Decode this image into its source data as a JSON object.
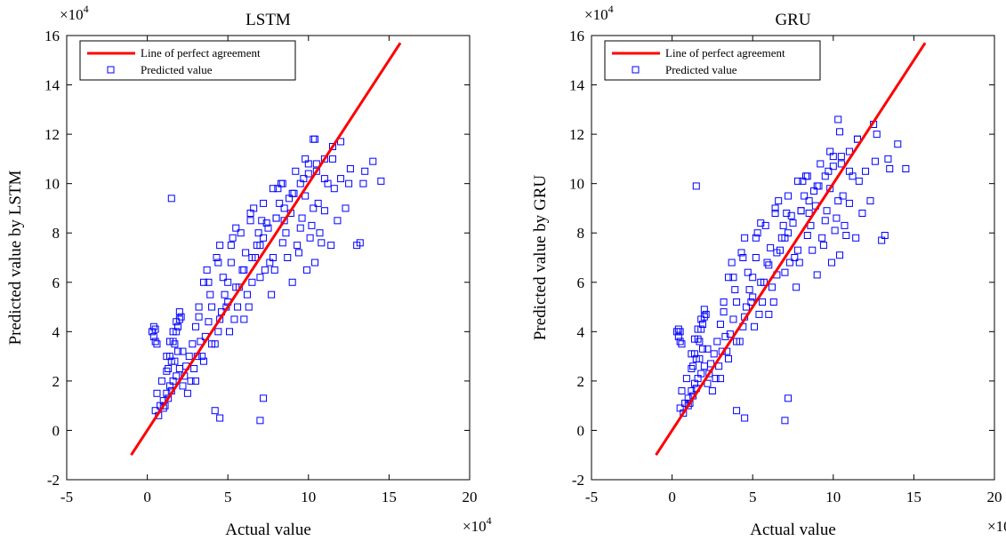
{
  "figure": {
    "colors": {
      "reference_line": "#ff0000",
      "markers": "#0000ff",
      "axes": "#000000",
      "background": "#ffffff"
    },
    "multiplier_label": "×10",
    "multiplier_exponent": "4"
  },
  "chart_data": [
    {
      "type": "scatter",
      "title": "LSTM",
      "xlabel": "Actual value",
      "ylabel": "Predicted value by LSTM",
      "xlim": [
        -5,
        20
      ],
      "ylim": [
        -2,
        16
      ],
      "xticks": [
        "-5",
        "0",
        "5",
        "10",
        "15",
        "20"
      ],
      "yticks": [
        "-2",
        "0",
        "2",
        "4",
        "6",
        "8",
        "10",
        "12",
        "14",
        "16"
      ],
      "scale_factor": "×10^4",
      "grid": false,
      "legend_position": "top-left",
      "legend": [
        "Line of perfect agreement",
        "Predicted value"
      ],
      "reference_line": {
        "name": "Line of perfect agreement",
        "x": [
          -1,
          15.7
        ],
        "y": [
          -1,
          15.7
        ]
      },
      "series": [
        {
          "name": "Predicted value",
          "marker": "square",
          "x": [
            0.5,
            0.8,
            1.0,
            1.2,
            1.4,
            1.6,
            1.8,
            2.0,
            0.6,
            0.9,
            1.1,
            1.3,
            1.5,
            1.7,
            1.9,
            2.2,
            0.7,
            1.0,
            1.2,
            1.4,
            1.6,
            1.8,
            2.0,
            2.4,
            2.6,
            2.8,
            3.0,
            3.2,
            3.4,
            3.6,
            3.8,
            4.0,
            2.5,
            2.7,
            2.9,
            3.1,
            3.3,
            3.5,
            3.7,
            3.9,
            4.2,
            4.4,
            4.6,
            4.8,
            5.0,
            5.2,
            5.4,
            5.6,
            4.3,
            4.5,
            4.7,
            4.9,
            5.1,
            5.3,
            5.5,
            5.7,
            5.9,
            6.1,
            6.3,
            6.5,
            6.7,
            6.9,
            7.1,
            7.3,
            6.0,
            6.2,
            6.4,
            6.6,
            6.8,
            7.0,
            7.2,
            7.4,
            7.6,
            7.8,
            8.0,
            8.2,
            8.4,
            8.6,
            8.8,
            9.0,
            7.7,
            7.9,
            8.1,
            8.3,
            8.5,
            8.7,
            8.9,
            9.1,
            9.3,
            9.5,
            9.7,
            9.9,
            10.1,
            10.3,
            10.5,
            10.7,
            9.4,
            9.6,
            9.8,
            10.0,
            10.2,
            10.4,
            10.6,
            10.8,
            11.0,
            11.2,
            11.4,
            11.6,
            11.8,
            12.0,
            12.3,
            12.6,
            1.2,
            1.4,
            1.6,
            1.8,
            2.0,
            2.2,
            1.3,
            1.5,
            1.7,
            1.9,
            2.1,
            2.3,
            3.0,
            3.5,
            4.0,
            4.5,
            5.0,
            5.5,
            6.0,
            6.5,
            7.0,
            7.5,
            8.0,
            8.5,
            9.0,
            9.5,
            10.0,
            10.5,
            11.0,
            11.5,
            3.2,
            3.8,
            4.4,
            5.2,
            5.8,
            6.4,
            7.2,
            7.8,
            8.4,
            9.2,
            9.8,
            10.4,
            0.3,
            0.4,
            0.5,
            0.6,
            0.4,
            0.5,
            1.5,
            4.2,
            4.5,
            7.0,
            7.2,
            10.3,
            11.0,
            12.5,
            13.0,
            13.2,
            13.5,
            14.0,
            14.5,
            13.4,
            12.0,
            11.5
          ],
          "y": [
            0.8,
            1.0,
            1.2,
            1.5,
            1.8,
            2.0,
            2.2,
            2.5,
            1.5,
            2.0,
            1.0,
            1.3,
            1.6,
            2.8,
            3.2,
            1.8,
            0.6,
            0.9,
            2.4,
            3.0,
            3.6,
            4.0,
            4.5,
            2.6,
            3.0,
            3.5,
            4.2,
            4.6,
            3.0,
            3.8,
            4.4,
            5.0,
            1.5,
            2.0,
            2.5,
            3.0,
            3.6,
            6.0,
            6.5,
            5.5,
            3.5,
            4.0,
            4.8,
            5.5,
            6.0,
            6.8,
            4.5,
            5.0,
            7.0,
            7.5,
            6.2,
            5.0,
            4.0,
            7.8,
            8.2,
            5.8,
            6.5,
            7.2,
            5.0,
            6.0,
            7.0,
            8.0,
            8.5,
            6.5,
            4.5,
            5.5,
            8.8,
            9.0,
            7.5,
            6.2,
            7.8,
            8.4,
            6.8,
            7.0,
            8.6,
            9.2,
            7.6,
            8.0,
            9.4,
            6.0,
            5.5,
            6.5,
            9.8,
            10.0,
            8.5,
            7.0,
            8.8,
            9.6,
            7.5,
            8.2,
            10.2,
            6.5,
            7.8,
            9.0,
            10.5,
            8.0,
            7.2,
            8.6,
            9.5,
            10.8,
            8.3,
            6.8,
            9.2,
            7.6,
            8.9,
            10.0,
            7.5,
            9.8,
            8.5,
            10.2,
            9.0,
            10.6,
            3.0,
            3.6,
            4.0,
            4.4,
            4.8,
            3.2,
            2.5,
            2.8,
            3.5,
            4.2,
            4.6,
            2.2,
            2.0,
            2.8,
            3.5,
            4.5,
            5.2,
            5.8,
            6.5,
            7.0,
            7.5,
            8.2,
            8.6,
            9.0,
            9.6,
            10.0,
            10.4,
            10.8,
            11.0,
            11.5,
            5.0,
            6.0,
            6.8,
            7.5,
            8.0,
            8.5,
            9.2,
            9.8,
            10.0,
            10.5,
            11.0,
            11.8,
            4.0,
            4.2,
            3.6,
            3.5,
            3.8,
            4.1,
            9.4,
            0.8,
            0.5,
            0.4,
            1.3,
            11.8,
            10.2,
            10.0,
            7.5,
            7.6,
            10.5,
            10.9,
            10.1,
            10.0,
            11.7,
            11.0
          ]
        }
      ]
    },
    {
      "type": "scatter",
      "title": "GRU",
      "xlabel": "Actual value",
      "ylabel": "Predicted value by GRU",
      "xlim": [
        -5,
        20
      ],
      "ylim": [
        -2,
        16
      ],
      "xticks": [
        "-5",
        "0",
        "5",
        "10",
        "15",
        "20"
      ],
      "yticks": [
        "-2",
        "0",
        "2",
        "4",
        "6",
        "8",
        "10",
        "12",
        "14",
        "16"
      ],
      "scale_factor": "×10^4",
      "grid": false,
      "legend_position": "top-left",
      "legend": [
        "Line of perfect agreement",
        "Predicted value"
      ],
      "reference_line": {
        "name": "Line of perfect agreement",
        "x": [
          -1,
          15.7
        ],
        "y": [
          -1,
          15.7
        ]
      },
      "series": [
        {
          "name": "Predicted value",
          "marker": "square",
          "x": [
            0.5,
            0.8,
            1.0,
            1.2,
            1.4,
            1.6,
            1.8,
            2.0,
            0.6,
            0.9,
            1.1,
            1.3,
            1.5,
            1.7,
            1.9,
            2.2,
            0.7,
            1.0,
            1.2,
            1.4,
            1.6,
            1.8,
            2.0,
            2.4,
            2.6,
            2.8,
            3.0,
            3.2,
            3.4,
            3.6,
            3.8,
            4.0,
            2.5,
            2.7,
            2.9,
            3.1,
            3.3,
            3.5,
            3.7,
            3.9,
            4.2,
            4.4,
            4.6,
            4.8,
            5.0,
            5.2,
            5.4,
            5.6,
            4.3,
            4.5,
            4.7,
            4.9,
            5.1,
            5.3,
            5.5,
            5.7,
            5.9,
            6.1,
            6.3,
            6.5,
            6.7,
            6.9,
            7.1,
            7.3,
            6.0,
            6.2,
            6.4,
            6.6,
            6.8,
            7.0,
            7.2,
            7.4,
            7.6,
            7.8,
            8.0,
            8.2,
            8.4,
            8.6,
            8.8,
            9.0,
            7.7,
            7.9,
            8.1,
            8.3,
            8.5,
            8.7,
            8.9,
            9.1,
            9.3,
            9.5,
            9.7,
            9.9,
            10.1,
            10.3,
            10.5,
            10.7,
            9.4,
            9.6,
            9.8,
            10.0,
            10.2,
            10.4,
            10.6,
            10.8,
            11.0,
            11.2,
            11.4,
            11.6,
            11.8,
            12.0,
            12.3,
            12.6,
            1.2,
            1.4,
            1.6,
            1.8,
            2.0,
            2.2,
            1.3,
            1.5,
            1.7,
            1.9,
            2.1,
            2.3,
            3.0,
            3.5,
            4.0,
            4.5,
            5.0,
            5.5,
            6.0,
            6.5,
            7.0,
            7.5,
            8.0,
            8.5,
            9.0,
            9.5,
            10.0,
            10.5,
            11.0,
            11.5,
            3.2,
            3.8,
            4.4,
            5.2,
            5.8,
            6.4,
            7.2,
            7.8,
            8.4,
            9.2,
            9.8,
            10.4,
            0.3,
            0.4,
            0.5,
            0.6,
            0.4,
            0.5,
            1.5,
            4.0,
            4.5,
            7.0,
            7.2,
            10.3,
            11.0,
            12.5,
            13.0,
            13.2,
            13.5,
            14.0,
            14.5,
            13.4,
            12.7,
            11.5
          ],
          "y": [
            0.9,
            1.1,
            1.3,
            1.6,
            1.9,
            2.1,
            2.3,
            2.6,
            1.6,
            2.1,
            1.1,
            1.4,
            1.7,
            2.9,
            3.3,
            1.9,
            0.7,
            1.0,
            2.5,
            3.1,
            3.7,
            4.1,
            4.6,
            2.7,
            3.1,
            3.6,
            4.3,
            4.8,
            3.2,
            3.9,
            4.5,
            5.2,
            1.6,
            2.1,
            2.6,
            3.2,
            3.8,
            6.2,
            6.8,
            5.7,
            3.6,
            4.2,
            5.0,
            5.7,
            6.2,
            7.0,
            4.7,
            5.2,
            7.2,
            7.8,
            6.4,
            5.2,
            4.2,
            8.0,
            8.4,
            6.0,
            6.8,
            7.4,
            5.2,
            6.3,
            7.3,
            8.3,
            8.8,
            6.8,
            4.7,
            5.8,
            9.0,
            9.3,
            7.8,
            6.4,
            8.0,
            8.7,
            7.0,
            7.3,
            8.9,
            9.5,
            7.9,
            8.3,
            9.7,
            6.3,
            5.8,
            6.8,
            10.1,
            10.3,
            8.8,
            7.3,
            9.1,
            9.9,
            7.8,
            8.5,
            10.5,
            6.8,
            8.1,
            9.3,
            10.8,
            8.3,
            7.5,
            8.9,
            9.8,
            11.1,
            8.6,
            7.1,
            9.5,
            7.9,
            9.2,
            10.3,
            7.8,
            10.1,
            8.8,
            10.5,
            9.3,
            10.9,
            3.1,
            3.7,
            4.1,
            4.5,
            4.9,
            3.3,
            2.6,
            2.9,
            3.6,
            4.3,
            4.7,
            2.3,
            2.1,
            2.9,
            3.6,
            4.6,
            5.4,
            6.0,
            6.7,
            7.2,
            7.8,
            8.4,
            8.9,
            9.3,
            9.9,
            10.3,
            10.7,
            11.1,
            11.3,
            11.8,
            5.2,
            6.2,
            7.0,
            7.8,
            8.3,
            8.8,
            9.5,
            10.1,
            10.3,
            10.8,
            11.3,
            12.1,
            4.0,
            4.1,
            3.6,
            3.5,
            3.8,
            4.0,
            9.9,
            0.8,
            0.5,
            0.4,
            1.3,
            12.6,
            10.5,
            12.4,
            7.7,
            7.9,
            10.6,
            11.6,
            10.6,
            11.0,
            12.0,
            11.8
          ]
        }
      ]
    }
  ]
}
